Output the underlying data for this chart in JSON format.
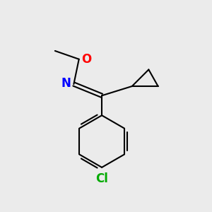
{
  "bg_color": "#ebebeb",
  "bond_color": "#000000",
  "bond_width": 1.5,
  "N_color": "#0000ff",
  "O_color": "#ff0000",
  "Cl_color": "#00aa00",
  "font_size_atom": 12,
  "N_label": "N",
  "O_label": "O",
  "Cl_label": "Cl"
}
